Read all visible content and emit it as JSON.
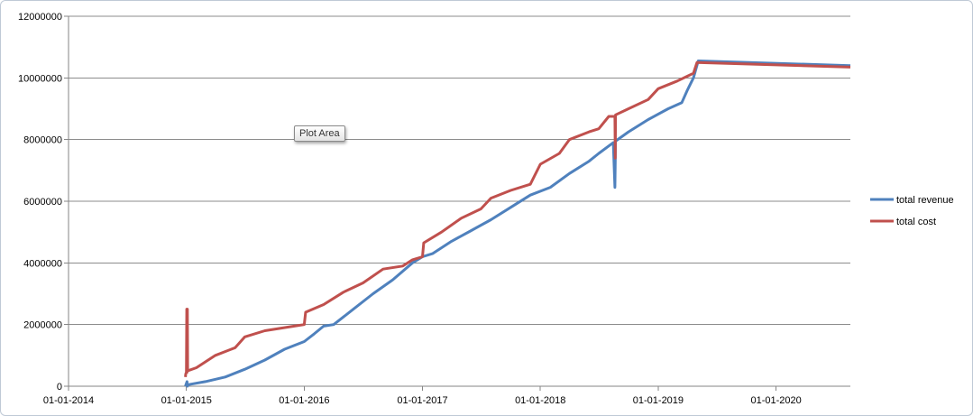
{
  "chart_data": {
    "type": "line",
    "title": "",
    "xlabel": "",
    "ylabel": "",
    "x_type": "date",
    "x_tick_labels": [
      "01-01-2014",
      "01-01-2015",
      "01-01-2016",
      "01-01-2017",
      "01-01-2018",
      "01-01-2019",
      "01-01-2020"
    ],
    "y_tick_labels": [
      "0",
      "2000000",
      "4000000",
      "6000000",
      "8000000",
      "10000000",
      "12000000"
    ],
    "xlim": [
      "2014-01-01",
      "2020-08-18"
    ],
    "ylim": [
      0,
      12000000
    ],
    "grid": {
      "horizontal": true,
      "vertical": false
    },
    "legend": {
      "position": "right"
    },
    "colors": {
      "total_revenue": "#4f81bd",
      "total_cost": "#c0504d",
      "gridline": "#8c8c8c"
    },
    "series": [
      {
        "name": "total revenue",
        "color": "#4f81bd",
        "points": [
          [
            "2014-12-29",
            0
          ],
          [
            "2015-01-03",
            150000
          ],
          [
            "2015-01-04",
            0
          ],
          [
            "2015-01-06",
            50000
          ],
          [
            "2015-03-01",
            150000
          ],
          [
            "2015-05-01",
            300000
          ],
          [
            "2015-07-01",
            550000
          ],
          [
            "2015-09-01",
            850000
          ],
          [
            "2015-11-01",
            1200000
          ],
          [
            "2016-01-01",
            1450000
          ],
          [
            "2016-02-01",
            1700000
          ],
          [
            "2016-03-01",
            1950000
          ],
          [
            "2016-04-01",
            2000000
          ],
          [
            "2016-06-01",
            2500000
          ],
          [
            "2016-08-01",
            3000000
          ],
          [
            "2016-10-01",
            3450000
          ],
          [
            "2016-12-01",
            4000000
          ],
          [
            "2017-01-01",
            4200000
          ],
          [
            "2017-02-01",
            4300000
          ],
          [
            "2017-04-01",
            4700000
          ],
          [
            "2017-06-01",
            5050000
          ],
          [
            "2017-08-01",
            5400000
          ],
          [
            "2017-10-01",
            5800000
          ],
          [
            "2017-12-01",
            6200000
          ],
          [
            "2018-02-01",
            6450000
          ],
          [
            "2018-04-01",
            6900000
          ],
          [
            "2018-06-01",
            7300000
          ],
          [
            "2018-07-01",
            7550000
          ],
          [
            "2018-08-15",
            7900000
          ],
          [
            "2018-08-20",
            6450000
          ],
          [
            "2018-08-22",
            7950000
          ],
          [
            "2018-10-01",
            8250000
          ],
          [
            "2018-12-01",
            8650000
          ],
          [
            "2019-02-01",
            9000000
          ],
          [
            "2019-03-15",
            9200000
          ],
          [
            "2019-04-01",
            9600000
          ],
          [
            "2019-04-20",
            10000000
          ],
          [
            "2019-05-05",
            10550000
          ],
          [
            "2020-08-18",
            10400000
          ]
        ]
      },
      {
        "name": "total cost",
        "color": "#c0504d",
        "points": [
          [
            "2014-12-29",
            300000
          ],
          [
            "2014-12-30",
            400000
          ],
          [
            "2015-01-01",
            450000
          ],
          [
            "2015-01-02",
            2500000
          ],
          [
            "2015-01-03",
            450000
          ],
          [
            "2015-01-04",
            2500000
          ],
          [
            "2015-01-05",
            500000
          ],
          [
            "2015-02-01",
            600000
          ],
          [
            "2015-04-01",
            1000000
          ],
          [
            "2015-06-01",
            1250000
          ],
          [
            "2015-07-01",
            1600000
          ],
          [
            "2015-09-01",
            1800000
          ],
          [
            "2015-12-01",
            1950000
          ],
          [
            "2016-01-01",
            2000000
          ],
          [
            "2016-01-05",
            2400000
          ],
          [
            "2016-03-01",
            2650000
          ],
          [
            "2016-05-01",
            3050000
          ],
          [
            "2016-07-01",
            3350000
          ],
          [
            "2016-09-01",
            3800000
          ],
          [
            "2016-11-01",
            3900000
          ],
          [
            "2016-12-01",
            4100000
          ],
          [
            "2017-01-01",
            4200000
          ],
          [
            "2017-01-05",
            4650000
          ],
          [
            "2017-03-01",
            5000000
          ],
          [
            "2017-05-01",
            5450000
          ],
          [
            "2017-07-01",
            5750000
          ],
          [
            "2017-08-01",
            6100000
          ],
          [
            "2017-10-01",
            6350000
          ],
          [
            "2017-12-01",
            6550000
          ],
          [
            "2018-01-01",
            7200000
          ],
          [
            "2018-03-01",
            7550000
          ],
          [
            "2018-04-01",
            8000000
          ],
          [
            "2018-06-01",
            8250000
          ],
          [
            "2018-07-01",
            8350000
          ],
          [
            "2018-08-01",
            8750000
          ],
          [
            "2018-08-20",
            8750000
          ],
          [
            "2018-08-21",
            7400000
          ],
          [
            "2018-08-22",
            8800000
          ],
          [
            "2018-10-01",
            9000000
          ],
          [
            "2018-12-01",
            9300000
          ],
          [
            "2019-01-01",
            9650000
          ],
          [
            "2019-03-01",
            9900000
          ],
          [
            "2019-04-20",
            10150000
          ],
          [
            "2019-05-01",
            10500000
          ],
          [
            "2020-08-18",
            10350000
          ]
        ]
      }
    ]
  },
  "tooltip": {
    "text": "Plot Area"
  }
}
